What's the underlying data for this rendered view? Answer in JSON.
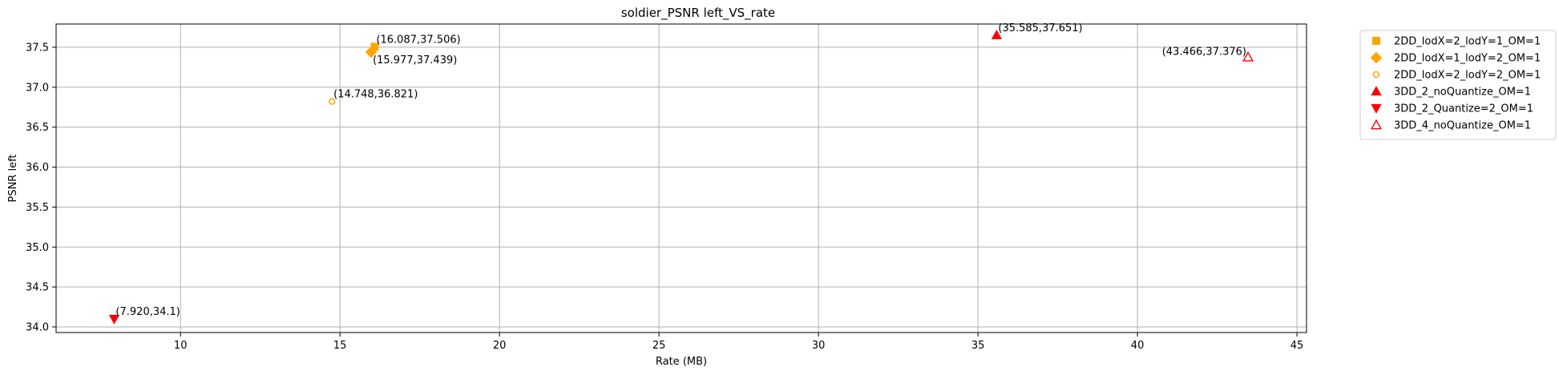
{
  "chart_data": {
    "type": "scatter",
    "title": "soldier_PSNR left_VS_rate",
    "xlabel": "Rate (MB)",
    "ylabel": "PSNR left",
    "xlim": [
      6.1,
      45.3
    ],
    "ylim": [
      33.93,
      37.79
    ],
    "xticks": [
      10,
      15,
      20,
      25,
      30,
      35,
      40,
      45
    ],
    "yticks": [
      34.0,
      34.5,
      35.0,
      35.5,
      36.0,
      36.5,
      37.0,
      37.5
    ],
    "ytick_labels": [
      "34.0",
      "34.5",
      "35.0",
      "35.5",
      "36.0",
      "36.5",
      "37.0",
      "37.5"
    ],
    "grid": true,
    "legend_position": "outside-right-top",
    "series": [
      {
        "name": "2DD_lodX=2_lodY=1_OM=1",
        "marker": "square",
        "color": "#FFA500",
        "filled": true,
        "points": [
          {
            "x": 16.087,
            "y": 37.506,
            "label": "(16.087,37.506)",
            "label_pos": "above-right"
          }
        ]
      },
      {
        "name": "2DD_lodX=1_lodY=2_OM=1",
        "marker": "diamond",
        "color": "#FFA500",
        "filled": true,
        "points": [
          {
            "x": 15.977,
            "y": 37.439,
            "label": "(15.977,37.439)",
            "label_pos": "below-right"
          }
        ]
      },
      {
        "name": "2DD_lodX=2_lodY=2_OM=1",
        "marker": "octagon",
        "color": "#FFA500",
        "filled": false,
        "points": [
          {
            "x": 14.748,
            "y": 36.821,
            "label": "(14.748,36.821)",
            "label_pos": "above-right"
          }
        ]
      },
      {
        "name": "3DD_2_noQuantize_OM=1",
        "marker": "triangle-up",
        "color": "#FF0000",
        "filled": true,
        "points": [
          {
            "x": 35.585,
            "y": 37.651,
            "label": "(35.585,37.651)",
            "label_pos": "above-right"
          }
        ]
      },
      {
        "name": "3DD_2_Quantize=2_OM=1",
        "marker": "triangle-down",
        "color": "#FF0000",
        "filled": true,
        "points": [
          {
            "x": 7.92,
            "y": 34.1,
            "label": "(7.920,34.1)",
            "label_pos": "above-right"
          }
        ]
      },
      {
        "name": "3DD_4_noQuantize_OM=1",
        "marker": "triangle-up",
        "color": "#FF0000",
        "filled": false,
        "points": [
          {
            "x": 43.466,
            "y": 37.376,
            "label": "(43.466,37.376)",
            "label_pos": "above-left"
          }
        ]
      }
    ]
  }
}
